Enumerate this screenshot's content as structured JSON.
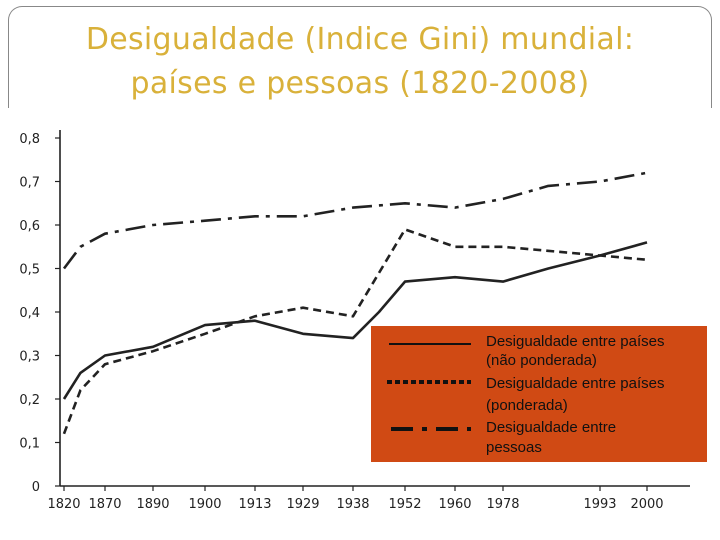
{
  "title": {
    "line1": "Desigualdade (Indice Gini) mundial:",
    "line2": "países e pessoas (1820-2008)"
  },
  "colors": {
    "title": "#d9b13a",
    "legend_bg": "#d04a14",
    "lines": "#222222"
  },
  "chart_data": {
    "type": "line",
    "categories": [
      "1820",
      "1870",
      "1890",
      "1900",
      "1913",
      "1929",
      "1938",
      "1952",
      "1960",
      "1978",
      "1993",
      "2000"
    ],
    "y_ticks": [
      "0",
      "0,1",
      "0,2",
      "0,3",
      "0,4",
      "0,5",
      "0,6",
      "0,7",
      "0,8"
    ],
    "ylim": [
      0,
      0.8
    ],
    "grid": false,
    "legend_position": "lower-right",
    "series": [
      {
        "key": "paises_nao_ponderada",
        "name_lines": [
          "Desigualdade entre países",
          " (não ponderada)"
        ],
        "style": "solid",
        "points": [
          [
            1820,
            0.2
          ],
          [
            1840,
            0.26
          ],
          [
            1870,
            0.3
          ],
          [
            1890,
            0.32
          ],
          [
            1900,
            0.37
          ],
          [
            1913,
            0.38
          ],
          [
            1929,
            0.35
          ],
          [
            1938,
            0.34
          ],
          [
            1945,
            0.4
          ],
          [
            1952,
            0.47
          ],
          [
            1960,
            0.48
          ],
          [
            1978,
            0.47
          ],
          [
            1985,
            0.5
          ],
          [
            1993,
            0.53
          ],
          [
            2000,
            0.56
          ]
        ]
      },
      {
        "key": "paises_ponderada",
        "name_lines": [
          "Desigualdade entre países",
          "(ponderada)"
        ],
        "style": "dashed",
        "points": [
          [
            1820,
            0.12
          ],
          [
            1840,
            0.22
          ],
          [
            1870,
            0.28
          ],
          [
            1890,
            0.31
          ],
          [
            1900,
            0.35
          ],
          [
            1913,
            0.39
          ],
          [
            1929,
            0.41
          ],
          [
            1938,
            0.39
          ],
          [
            1945,
            0.49
          ],
          [
            1952,
            0.59
          ],
          [
            1960,
            0.55
          ],
          [
            1978,
            0.55
          ],
          [
            1993,
            0.53
          ],
          [
            2000,
            0.52
          ]
        ]
      },
      {
        "key": "pessoas",
        "name_lines": [
          "Desigualdade entre",
          " pessoas"
        ],
        "style": "dashdot",
        "points": [
          [
            1820,
            0.5
          ],
          [
            1840,
            0.55
          ],
          [
            1870,
            0.58
          ],
          [
            1890,
            0.6
          ],
          [
            1900,
            0.61
          ],
          [
            1913,
            0.62
          ],
          [
            1929,
            0.62
          ],
          [
            1938,
            0.64
          ],
          [
            1952,
            0.65
          ],
          [
            1960,
            0.64
          ],
          [
            1978,
            0.66
          ],
          [
            1985,
            0.69
          ],
          [
            1993,
            0.7
          ],
          [
            2000,
            0.72
          ]
        ]
      }
    ]
  }
}
